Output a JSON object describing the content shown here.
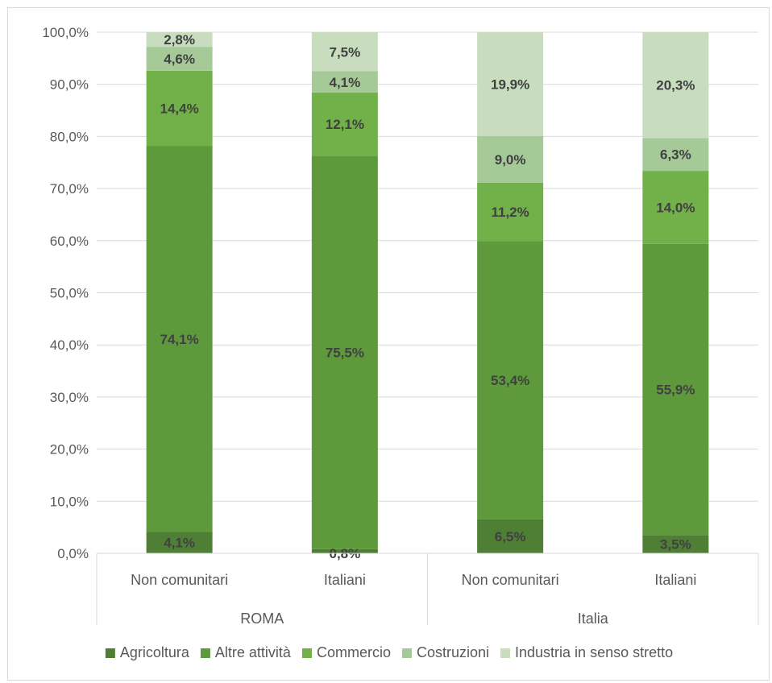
{
  "chart_data": {
    "type": "bar",
    "stacked": true,
    "percent": true,
    "title": "",
    "xlabel": "",
    "ylabel": "",
    "ylim": [
      0,
      100
    ],
    "ytick_step": 10,
    "yticks": [
      "0,0%",
      "10,0%",
      "20,0%",
      "30,0%",
      "40,0%",
      "50,0%",
      "60,0%",
      "70,0%",
      "80,0%",
      "90,0%",
      "100,0%"
    ],
    "grid": true,
    "legend_position": "bottom",
    "categories": [
      "Non comunitari",
      "Italiani",
      "Non comunitari",
      "Italiani"
    ],
    "groups": [
      {
        "label": "ROMA",
        "span": [
          0,
          1
        ]
      },
      {
        "label": "Italia",
        "span": [
          2,
          3
        ]
      }
    ],
    "series": [
      {
        "name": "Agricoltura",
        "color": "#4f7f35",
        "values": [
          4.1,
          0.8,
          6.5,
          3.5
        ],
        "labels": [
          "4,1%",
          "0,8%",
          "6,5%",
          "3,5%"
        ]
      },
      {
        "name": "Altre attività",
        "color": "#5e9a3c",
        "values": [
          74.1,
          75.5,
          53.4,
          55.9
        ],
        "labels": [
          "74,1%",
          "75,5%",
          "53,4%",
          "55,9%"
        ]
      },
      {
        "name": "Commercio",
        "color": "#72b04a",
        "values": [
          14.4,
          12.1,
          11.2,
          14.0
        ],
        "labels": [
          "14,4%",
          "12,1%",
          "11,2%",
          "14,0%"
        ]
      },
      {
        "name": "Costruzioni",
        "color": "#a6c998",
        "values": [
          4.6,
          4.1,
          9.0,
          6.3
        ],
        "labels": [
          "4,6%",
          "4,1%",
          "9,0%",
          "6,3%"
        ]
      },
      {
        "name": "Industria in senso stretto",
        "color": "#c7ddbd",
        "values": [
          2.8,
          7.5,
          19.9,
          20.3
        ],
        "labels": [
          "2,8%",
          "7,5%",
          "19,9%",
          "20,3%"
        ]
      }
    ]
  }
}
